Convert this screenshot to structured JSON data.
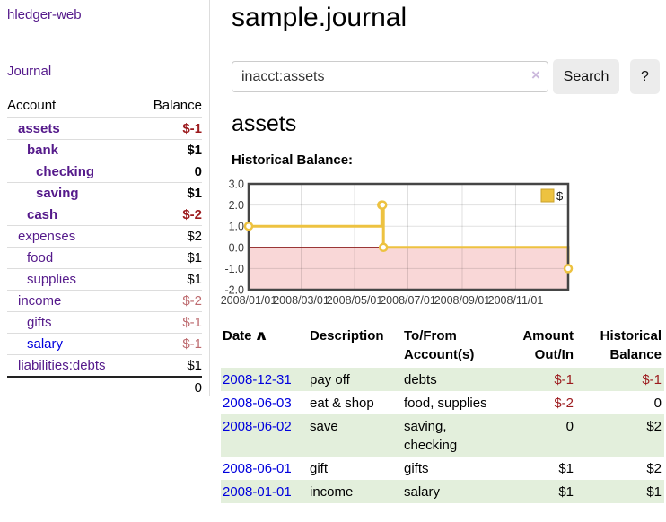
{
  "colors": {
    "purple_link": "#551a8b",
    "blue_link": "#0000dd",
    "negative_strong": "#9c1b1e",
    "negative_soft": "#bd6a6e",
    "row_green": "#e3efdc",
    "series_gold": "#edc240",
    "negative_region_pink": "#f9d7d7",
    "zero_line_red": "#8b1a1a"
  },
  "sidebar": {
    "app_title": "hledger-web",
    "journal_link": "Journal",
    "table": {
      "account_header": "Account",
      "balance_header": "Balance",
      "accounts": [
        {
          "name": "assets",
          "depth": 1,
          "bold": true,
          "balance": "$-1",
          "neg": "strong"
        },
        {
          "name": "bank",
          "depth": 2,
          "bold": true,
          "balance": "$1"
        },
        {
          "name": "checking",
          "depth": 3,
          "bold": true,
          "balance": "0"
        },
        {
          "name": "saving",
          "depth": 3,
          "bold": true,
          "balance": "$1"
        },
        {
          "name": "cash",
          "depth": 2,
          "bold": true,
          "balance": "$-2",
          "neg": "strong"
        },
        {
          "name": "expenses",
          "depth": 1,
          "bold": false,
          "balance": "$2"
        },
        {
          "name": "food",
          "depth": 2,
          "bold": false,
          "balance": "$1"
        },
        {
          "name": "supplies",
          "depth": 2,
          "bold": false,
          "balance": "$1"
        },
        {
          "name": "income",
          "depth": 1,
          "bold": false,
          "balance": "$-2",
          "neg": "soft"
        },
        {
          "name": "gifts",
          "depth": 2,
          "bold": false,
          "balance": "$-1",
          "neg": "soft"
        },
        {
          "name": "salary",
          "depth": 2,
          "bold": false,
          "balance": "$-1",
          "neg": "soft",
          "link": "blue"
        },
        {
          "name": "liabilities:debts",
          "depth": 1,
          "bold": false,
          "balance": "$1"
        }
      ],
      "total": "0"
    }
  },
  "header": {
    "title": "sample.journal"
  },
  "search": {
    "query": "inacct:assets",
    "clear_icon": "×",
    "button_label": "Search",
    "help_label": "?"
  },
  "account_page": {
    "title": "assets",
    "chart_label": "Historical Balance:"
  },
  "chart_data": {
    "type": "line",
    "step": true,
    "title": "Historical Balance",
    "xlim": [
      "2008-01-01",
      "2008-12-31"
    ],
    "ylim": [
      -2,
      3
    ],
    "x_ticks": [
      "2008/01/01",
      "2008/03/01",
      "2008/05/01",
      "2008/07/01",
      "2008/09/01",
      "2008/11/01"
    ],
    "y_ticks": [
      3,
      2,
      1,
      0,
      -1,
      -2
    ],
    "y_tick_labels": [
      "3.0",
      "2.0",
      "1.0",
      "0.0",
      "-1.0",
      "-2.0"
    ],
    "grid": true,
    "legend": {
      "label": "$",
      "position": "top-right"
    },
    "series": [
      {
        "name": "$",
        "color": "#edc240",
        "points": [
          [
            "2008-01-01",
            1
          ],
          [
            "2008-06-01",
            2
          ],
          [
            "2008-06-02",
            2
          ],
          [
            "2008-06-03",
            0
          ],
          [
            "2008-12-31",
            -1
          ]
        ]
      }
    ],
    "negative_region_color": "#f9d7d7",
    "zero_line_color": "#8b1a1a"
  },
  "register": {
    "headers": {
      "date": "Date",
      "sort_indicator": "∧",
      "description": "Description",
      "tofrom_1": "To/From",
      "tofrom_2": "Account(s)",
      "amount_1": "Amount",
      "amount_2": "Out/In",
      "hist_1": "Historical",
      "hist_2": "Balance"
    },
    "rows": [
      {
        "date": "2008-12-31",
        "description": "pay off",
        "accounts": "debts",
        "amount": "$-1",
        "amount_neg": true,
        "balance": "$-1",
        "balance_neg": true
      },
      {
        "date": "2008-06-03",
        "description": "eat & shop",
        "accounts": "food, supplies",
        "amount": "$-2",
        "amount_neg": true,
        "balance": "0",
        "balance_neg": false
      },
      {
        "date": "2008-06-02",
        "description": "save",
        "accounts": "saving, checking",
        "amount": "0",
        "amount_neg": false,
        "balance": "$2",
        "balance_neg": false
      },
      {
        "date": "2008-06-01",
        "description": "gift",
        "accounts": "gifts",
        "amount": "$1",
        "amount_neg": false,
        "balance": "$2",
        "balance_neg": false
      },
      {
        "date": "2008-01-01",
        "description": "income",
        "accounts": "salary",
        "amount": "$1",
        "amount_neg": false,
        "balance": "$1",
        "balance_neg": false
      }
    ]
  }
}
